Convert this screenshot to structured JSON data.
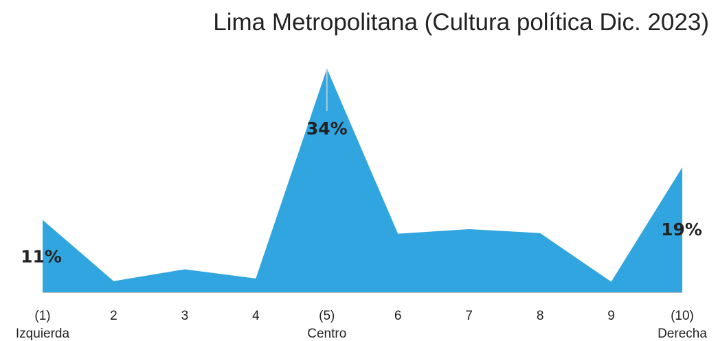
{
  "chart_data": {
    "type": "area",
    "title": "Lima Metropolitana (Cultura política Dic. 2023)",
    "xlabel": "",
    "ylabel": "",
    "x": [
      1,
      2,
      3,
      4,
      5,
      6,
      7,
      8,
      9,
      10
    ],
    "tick_labels": [
      [
        "(1)",
        "Izquierda"
      ],
      [
        "2"
      ],
      [
        "3"
      ],
      [
        "4"
      ],
      [
        "(5)",
        "Centro"
      ],
      [
        "6"
      ],
      [
        "7"
      ],
      [
        "8"
      ],
      [
        "9"
      ],
      [
        "(10)",
        "Derecha"
      ]
    ],
    "series": [
      {
        "values": [
          11,
          1.7,
          3.5,
          2.1,
          34,
          8.9,
          9.6,
          9.0,
          1.6,
          19
        ],
        "color": "#31a5df"
      }
    ],
    "data_labels": [
      {
        "index": 0,
        "text": "11%"
      },
      {
        "index": 4,
        "text": "34%"
      },
      {
        "index": 9,
        "text": "19%"
      }
    ],
    "ylim": [
      0,
      34
    ],
    "grid": false,
    "legend": "none"
  }
}
